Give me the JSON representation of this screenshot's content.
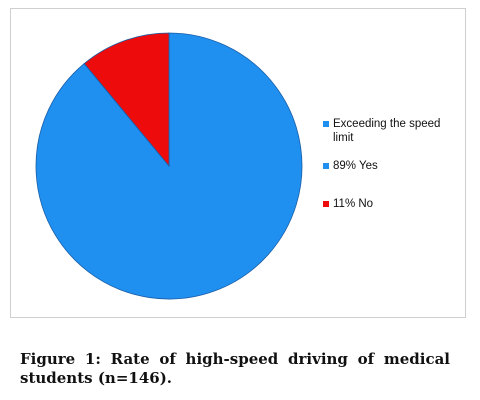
{
  "chart_data": {
    "type": "pie",
    "legend_title": "Exceeding the speed limit",
    "slices": [
      {
        "label": "89% Yes",
        "value": 89,
        "color": "#1f8ff0"
      },
      {
        "label": "11% No",
        "value": 11,
        "color": "#ee0b0b"
      }
    ],
    "start": "12 o'clock",
    "direction": "clockwise",
    "legend_position": "right"
  },
  "caption": "Figure 1: Rate of high-speed driving of medical students (n=146)."
}
